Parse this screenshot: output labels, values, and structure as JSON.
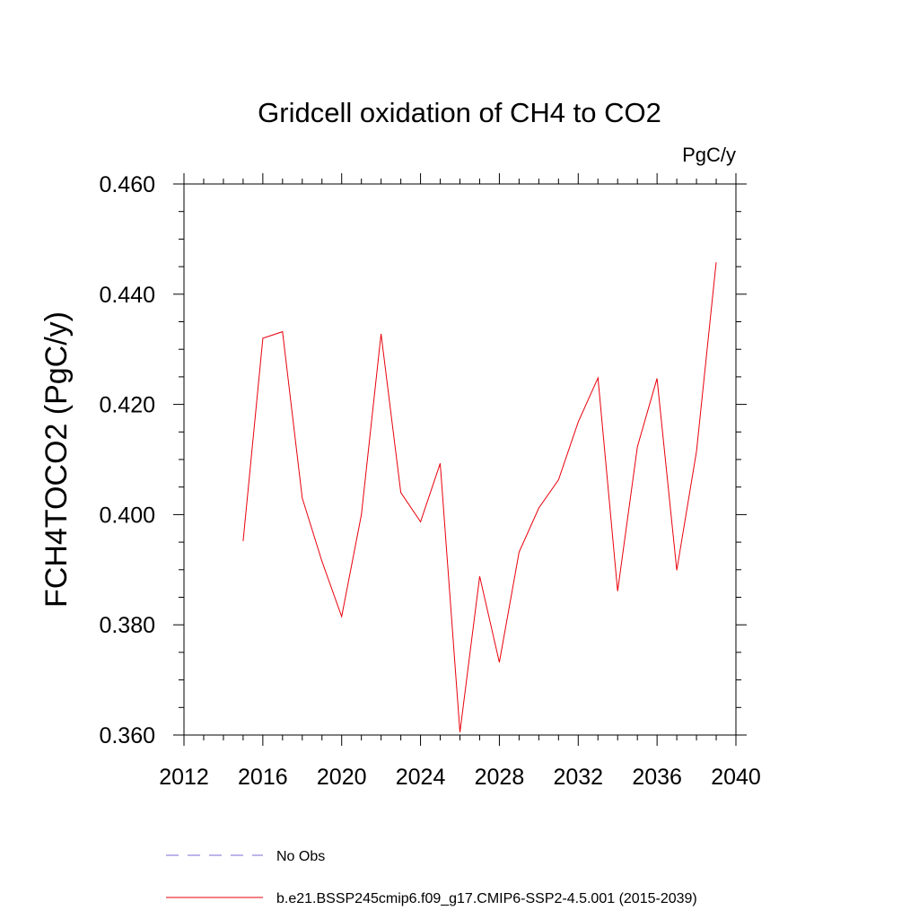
{
  "chart_data": {
    "type": "line",
    "title": "Gridcell oxidation of CH4 to CO2",
    "units": "PgC/y",
    "ylabel": "FCH4TOCO2  (PgC/y)",
    "xlabel": "",
    "xlim": [
      2012,
      2040
    ],
    "ylim": [
      0.36,
      0.46
    ],
    "x_ticks": [
      2012,
      2016,
      2020,
      2024,
      2028,
      2032,
      2036,
      2040
    ],
    "x_tick_labels": [
      "2012",
      "2016",
      "2020",
      "2024",
      "2028",
      "2032",
      "2036",
      "2040"
    ],
    "y_ticks": [
      0.36,
      0.38,
      0.4,
      0.42,
      0.44,
      0.46
    ],
    "y_tick_labels": [
      "0.360",
      "0.380",
      "0.400",
      "0.420",
      "0.440",
      "0.460"
    ],
    "grid": false,
    "series": [
      {
        "name": "b.e21.BSSP245cmip6.f09_g17.CMIP6-SSP2-4.5.001 (2015-2039)",
        "color": "#e8000b",
        "x": [
          2015,
          2016,
          2017,
          2018,
          2019,
          2020,
          2021,
          2022,
          2023,
          2024,
          2025,
          2026,
          2027,
          2028,
          2029,
          2030,
          2031,
          2032,
          2033,
          2034,
          2035,
          2036,
          2037,
          2038,
          2039
        ],
        "y": [
          0.3952,
          0.432,
          0.4332,
          0.403,
          0.3915,
          0.3815,
          0.4,
          0.4328,
          0.404,
          0.3987,
          0.4093,
          0.3605,
          0.3888,
          0.3732,
          0.3932,
          0.4012,
          0.4063,
          0.4168,
          0.4248,
          0.3861,
          0.4123,
          0.4247,
          0.3899,
          0.4115,
          0.4458
        ]
      }
    ],
    "legend": [
      {
        "label": "No Obs",
        "color": "#7b68d6",
        "style": "dashed"
      },
      {
        "label": "b.e21.BSSP245cmip6.f09_g17.CMIP6-SSP2-4.5.001 (2015-2039)",
        "color": "#e8000b",
        "style": "solid"
      }
    ],
    "legend_position": "bottom"
  }
}
